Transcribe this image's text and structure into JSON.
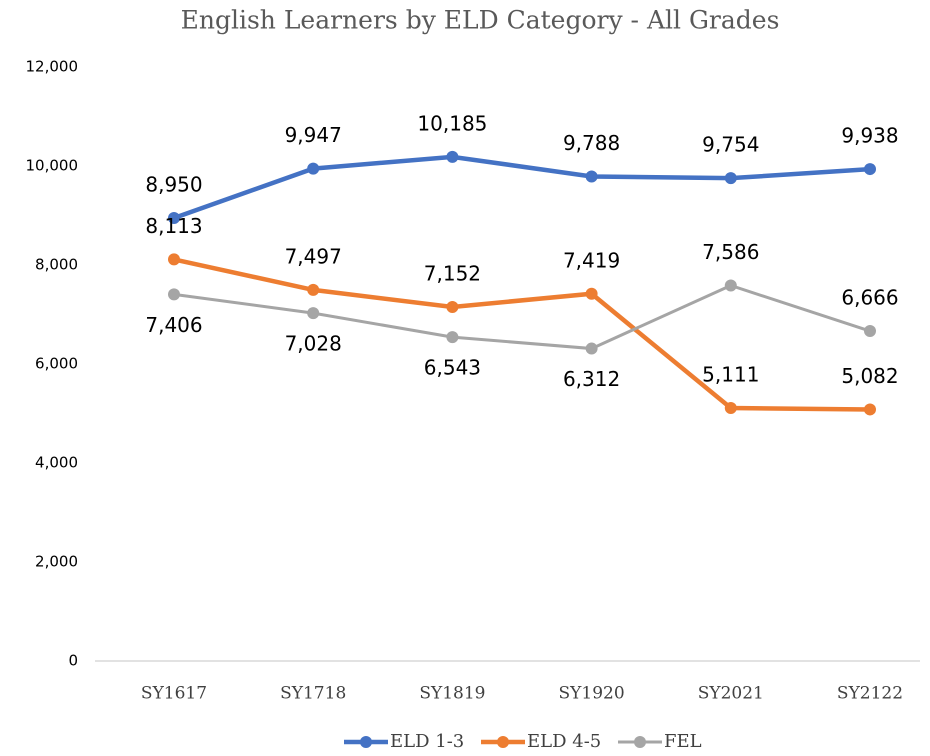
{
  "chart_data": {
    "type": "line",
    "title": "English Learners by ELD Category - All Grades",
    "categories": [
      "SY1617",
      "SY1718",
      "SY1819",
      "SY1920",
      "SY2021",
      "SY2122"
    ],
    "series": [
      {
        "name": "ELD 1-3",
        "color": "#4472c4",
        "values": [
          8950,
          9947,
          10185,
          9788,
          9754,
          9938
        ],
        "value_labels": [
          "8,950",
          "9,947",
          "10,185",
          "9,788",
          "9,754",
          "9,938"
        ]
      },
      {
        "name": "ELD 4-5",
        "color": "#ed7d31",
        "values": [
          8113,
          7497,
          7152,
          7419,
          5111,
          5082
        ],
        "value_labels": [
          "8,113",
          "7,497",
          "7,152",
          "7,419",
          "5,111",
          "5,082"
        ]
      },
      {
        "name": "FEL",
        "color": "#a5a5a5",
        "values": [
          7406,
          7028,
          6543,
          6312,
          7586,
          6666
        ],
        "value_labels": [
          "7,406",
          "7,028",
          "6,543",
          "6,312",
          "7,586",
          "6,666"
        ]
      }
    ],
    "ylim": [
      0,
      12000
    ],
    "yticks": [
      0,
      {
        "value": 2000,
        "label": "2,000"
      },
      {
        "value": 4000,
        "label": "4,000"
      },
      {
        "value": 6000,
        "label": "6,000"
      },
      {
        "value": 8000,
        "label": "8,000"
      },
      {
        "value": 10000,
        "label": "10,000"
      },
      {
        "value": 12000,
        "label": "12,000"
      }
    ],
    "grid": false,
    "legend": "bottom"
  }
}
